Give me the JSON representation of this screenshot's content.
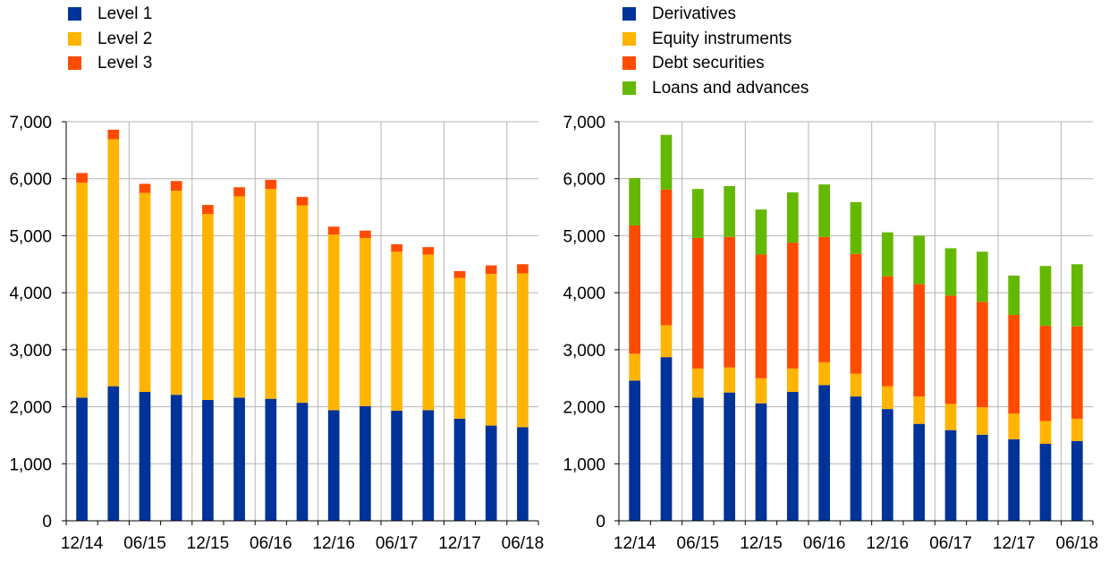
{
  "colors": {
    "grid": "#b3b3b3",
    "axis": "#000000"
  },
  "chart_data": [
    {
      "type": "bar",
      "stacked": true,
      "title": "",
      "xlabel": "",
      "ylabel": "",
      "ylim": [
        0,
        7000
      ],
      "yticks": [
        "0",
        "1,000",
        "2,000",
        "3,000",
        "4,000",
        "5,000",
        "6,000",
        "7,000"
      ],
      "ytick_values": [
        0,
        1000,
        2000,
        3000,
        4000,
        5000,
        6000,
        7000
      ],
      "grid": true,
      "legend_position": "top-left",
      "categories": [
        "12/14",
        "03/15",
        "06/15",
        "09/15",
        "12/15",
        "03/16",
        "06/16",
        "09/16",
        "12/16",
        "03/17",
        "06/17",
        "09/17",
        "12/17",
        "03/18",
        "06/18"
      ],
      "xtick_labels": [
        "12/14",
        "06/15",
        "12/15",
        "06/16",
        "12/16",
        "06/17",
        "12/17",
        "06/18"
      ],
      "series": [
        {
          "name": "Level 1",
          "color": "#003399",
          "values": [
            2160,
            2360,
            2260,
            2210,
            2120,
            2160,
            2140,
            2070,
            1940,
            2010,
            1930,
            1940,
            1790,
            1670,
            1640
          ]
        },
        {
          "name": "Level 2",
          "color": "#ffb400",
          "values": [
            3770,
            4330,
            3490,
            3580,
            3260,
            3530,
            3680,
            3460,
            3080,
            2950,
            2790,
            2730,
            2470,
            2660,
            2700
          ]
        },
        {
          "name": "Level 3",
          "color": "#ff4b00",
          "values": [
            170,
            170,
            160,
            170,
            160,
            160,
            160,
            150,
            140,
            130,
            130,
            130,
            120,
            150,
            160
          ]
        }
      ]
    },
    {
      "type": "bar",
      "stacked": true,
      "title": "",
      "xlabel": "",
      "ylabel": "",
      "ylim": [
        0,
        7000
      ],
      "yticks": [
        "0",
        "1,000",
        "2,000",
        "3,000",
        "4,000",
        "5,000",
        "6,000",
        "7,000"
      ],
      "ytick_values": [
        0,
        1000,
        2000,
        3000,
        4000,
        5000,
        6000,
        7000
      ],
      "grid": true,
      "legend_position": "top-left",
      "categories": [
        "12/14",
        "03/15",
        "06/15",
        "09/15",
        "12/15",
        "03/16",
        "06/16",
        "09/16",
        "12/16",
        "03/17",
        "06/17",
        "09/17",
        "12/17",
        "03/18",
        "06/18"
      ],
      "xtick_labels": [
        "12/14",
        "06/15",
        "12/15",
        "06/16",
        "12/16",
        "06/17",
        "12/17",
        "06/18"
      ],
      "series": [
        {
          "name": "Derivatives",
          "color": "#003399",
          "values": [
            2460,
            2870,
            2160,
            2250,
            2060,
            2260,
            2380,
            2180,
            1960,
            1700,
            1590,
            1510,
            1430,
            1350,
            1400
          ]
        },
        {
          "name": "Equity instruments",
          "color": "#ffb400",
          "values": [
            470,
            560,
            510,
            440,
            440,
            410,
            400,
            400,
            400,
            480,
            460,
            480,
            450,
            400,
            390
          ]
        },
        {
          "name": "Debt securities",
          "color": "#ff4b00",
          "values": [
            2250,
            2380,
            2290,
            2290,
            2170,
            2210,
            2200,
            2100,
            1930,
            1970,
            1900,
            1850,
            1730,
            1670,
            1620
          ]
        },
        {
          "name": "Loans and advances",
          "color": "#65b800",
          "values": [
            830,
            960,
            860,
            890,
            790,
            880,
            920,
            910,
            770,
            850,
            830,
            880,
            690,
            1050,
            1090
          ]
        }
      ]
    }
  ]
}
